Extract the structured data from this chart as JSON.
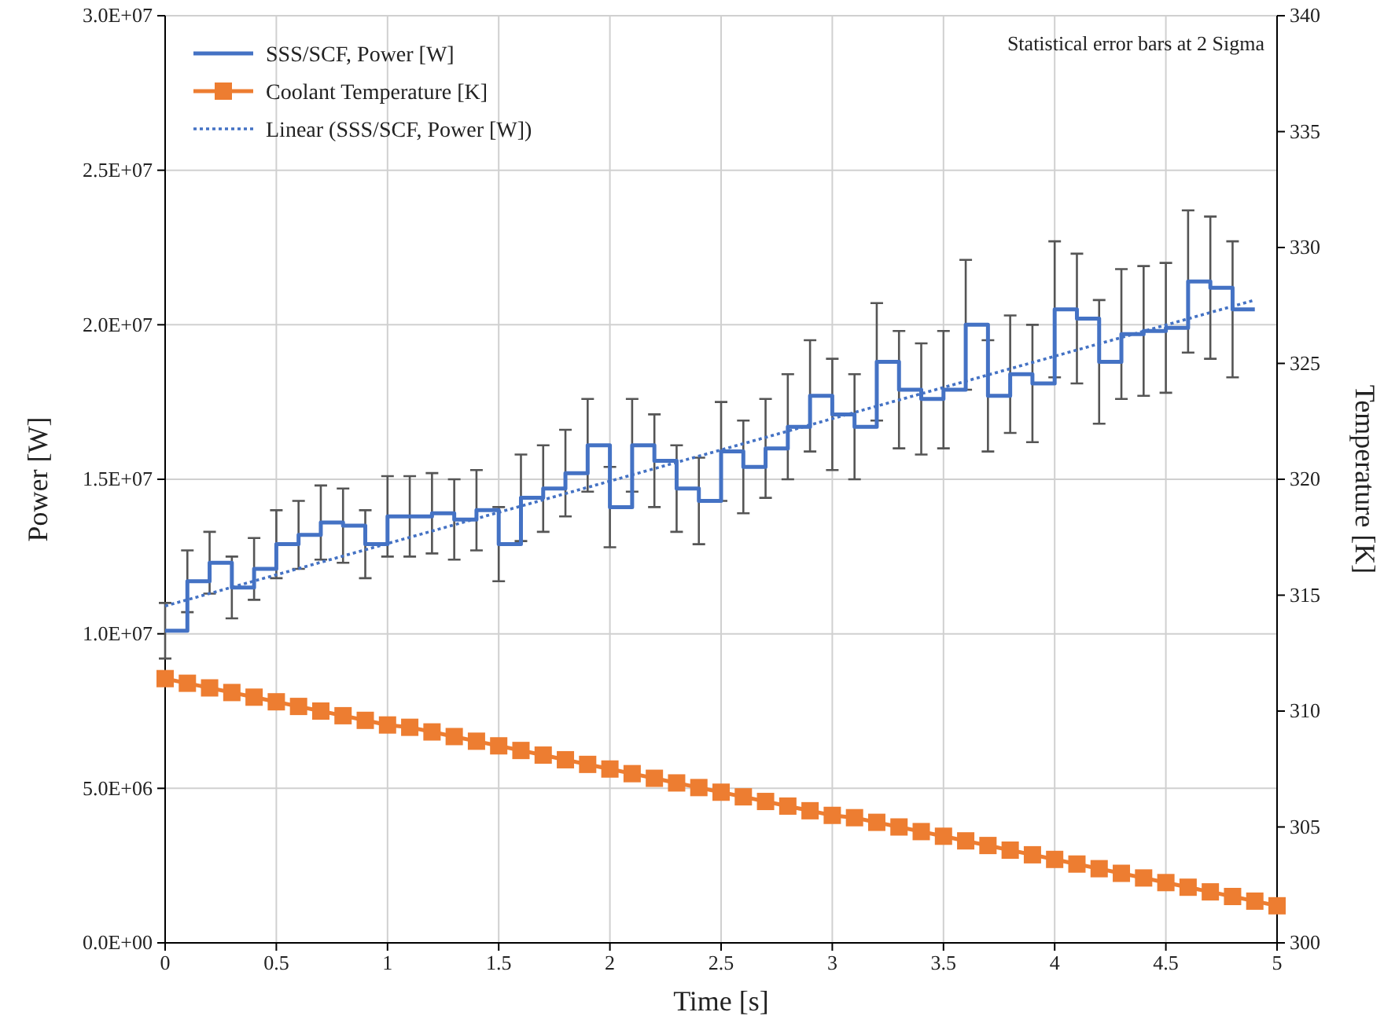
{
  "chart_data": {
    "type": "line",
    "xlabel": "Time [s]",
    "ylabel": "Power  [W]",
    "y2label": "Temperature  [K]",
    "annotations": [
      "Statistical error bars at 2 Sigma"
    ],
    "xlim": [
      0,
      5
    ],
    "xticks": [
      0,
      0.5,
      1,
      1.5,
      2,
      2.5,
      3,
      3.5,
      4,
      4.5,
      5
    ],
    "ylim": [
      0,
      30000000
    ],
    "yticks": [
      {
        "value": 0,
        "label": "0.0E+00"
      },
      {
        "value": 5000000,
        "label": "5.0E+06"
      },
      {
        "value": 10000000,
        "label": "1.0E+07"
      },
      {
        "value": 15000000,
        "label": "1.5E+07"
      },
      {
        "value": 20000000,
        "label": "2.0E+07"
      },
      {
        "value": 25000000,
        "label": "2.5E+07"
      },
      {
        "value": 30000000,
        "label": "3.0E+07"
      }
    ],
    "y2lim": [
      300,
      340
    ],
    "y2ticks": [
      300,
      305,
      310,
      315,
      320,
      325,
      330,
      335,
      340
    ],
    "grid": true,
    "legend": "top left",
    "series": [
      {
        "name": "SSS/SCF, Power [W]",
        "type": "step",
        "color": "#4472c4",
        "marker": "none",
        "line_style": "solid",
        "x": [
          0,
          0.1,
          0.2,
          0.3,
          0.4,
          0.5,
          0.6,
          0.7,
          0.8,
          0.9,
          1,
          1.1,
          1.2,
          1.3,
          1.4,
          1.5,
          1.6,
          1.7,
          1.8,
          1.9,
          2,
          2.1,
          2.2,
          2.3,
          2.4,
          2.5,
          2.6,
          2.7,
          2.8,
          2.9,
          3,
          3.1,
          3.2,
          3.3,
          3.4,
          3.5,
          3.6,
          3.7,
          3.8,
          3.9,
          4,
          4.1,
          4.2,
          4.3,
          4.4,
          4.5,
          4.6,
          4.7,
          4.8,
          4.9
        ],
        "values": [
          10100000,
          11700000,
          12300000,
          11500000,
          12100000,
          12900000,
          13200000,
          13600000,
          13500000,
          12900000,
          13800000,
          13800000,
          13900000,
          13700000,
          14000000,
          12900000,
          14400000,
          14700000,
          15200000,
          16100000,
          14100000,
          16100000,
          15600000,
          14700000,
          14300000,
          15900000,
          15400000,
          16000000,
          16700000,
          17700000,
          17100000,
          16700000,
          18800000,
          17900000,
          17600000,
          17900000,
          20000000,
          17700000,
          18400000,
          18100000,
          20500000,
          20200000,
          18800000,
          19700000,
          19800000,
          19900000,
          21400000,
          21200000,
          20500000,
          20500000
        ],
        "errors": [
          900000,
          1000000,
          1000000,
          1000000,
          1000000,
          1100000,
          1100000,
          1200000,
          1200000,
          1100000,
          1300000,
          1300000,
          1300000,
          1300000,
          1300000,
          1200000,
          1400000,
          1400000,
          1400000,
          1500000,
          1300000,
          1500000,
          1500000,
          1400000,
          1400000,
          1600000,
          1500000,
          1600000,
          1700000,
          1800000,
          1800000,
          1700000,
          1900000,
          1900000,
          1800000,
          1900000,
          2100000,
          1800000,
          1900000,
          1900000,
          2200000,
          2100000,
          2000000,
          2100000,
          2100000,
          2100000,
          2300000,
          2300000,
          2200000,
          null
        ]
      },
      {
        "name": "Coolant Temperature [K]",
        "type": "line",
        "axis": "y2",
        "color": "#ed7d31",
        "marker": "square",
        "line_style": "solid",
        "x": [
          0,
          0.1,
          0.2,
          0.3,
          0.4,
          0.5,
          0.6,
          0.7,
          0.8,
          0.9,
          1,
          1.1,
          1.2,
          1.3,
          1.4,
          1.5,
          1.6,
          1.7,
          1.8,
          1.9,
          2,
          2.1,
          2.2,
          2.3,
          2.4,
          2.5,
          2.6,
          2.7,
          2.8,
          2.9,
          3,
          3.1,
          3.2,
          3.3,
          3.4,
          3.5,
          3.6,
          3.7,
          3.8,
          3.9,
          4,
          4.1,
          4.2,
          4.3,
          4.4,
          4.5,
          4.6,
          4.7,
          4.8,
          4.9,
          5
        ],
        "values": [
          311.4,
          311.2,
          311.0,
          310.8,
          310.6,
          310.4,
          310.2,
          310.0,
          309.8,
          309.6,
          309.4,
          309.3,
          309.1,
          308.9,
          308.7,
          308.5,
          308.3,
          308.1,
          307.9,
          307.7,
          307.5,
          307.3,
          307.1,
          306.9,
          306.7,
          306.5,
          306.3,
          306.1,
          305.9,
          305.7,
          305.5,
          305.4,
          305.2,
          305.0,
          304.8,
          304.6,
          304.4,
          304.2,
          304.0,
          303.8,
          303.6,
          303.4,
          303.2,
          303.0,
          302.8,
          302.6,
          302.4,
          302.2,
          302.0,
          301.8,
          301.6
        ]
      },
      {
        "name": "Linear (SSS/SCF, Power [W])",
        "type": "line",
        "color": "#4472c4",
        "marker": "none",
        "line_style": "dotted",
        "x": [
          0,
          4.9
        ],
        "values": [
          10900000,
          20800000
        ]
      }
    ]
  }
}
